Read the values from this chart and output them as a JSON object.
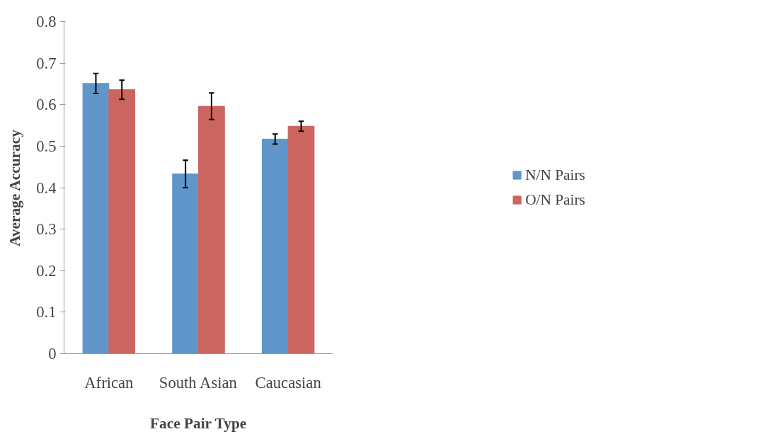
{
  "chart_data": {
    "type": "bar",
    "xlabel": "Face Pair Type",
    "ylabel": "Average Accuracy",
    "categories": [
      "African",
      "South Asian",
      "Caucasian"
    ],
    "series": [
      {
        "name": "N/N Pairs",
        "color": "#6096c9",
        "values": [
          0.651,
          0.433,
          0.517
        ],
        "errors": [
          0.024,
          0.033,
          0.012
        ]
      },
      {
        "name": "O/N Pairs",
        "color": "#cc6560",
        "values": [
          0.636,
          0.596,
          0.548
        ],
        "errors": [
          0.023,
          0.032,
          0.012
        ]
      }
    ],
    "ylim": [
      0,
      0.8
    ],
    "yticks": [
      0,
      0.1,
      0.2,
      0.3,
      0.4,
      0.5,
      0.6,
      0.7,
      0.8
    ],
    "grid": false,
    "legend": "right"
  }
}
